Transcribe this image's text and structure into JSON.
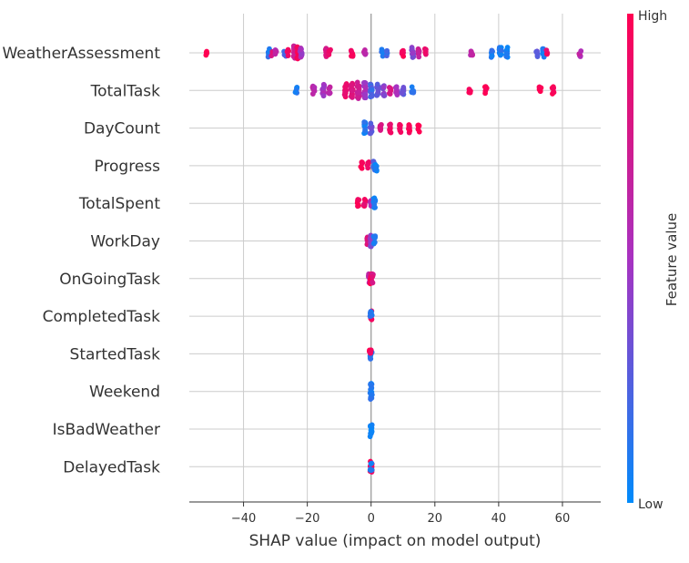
{
  "chart_data": {
    "type": "scatter",
    "subtype": "shap-beeswarm",
    "xlabel": "SHAP value (impact on model output)",
    "xlim": [
      -57,
      72
    ],
    "xticks": [
      -40,
      -20,
      0,
      20,
      40,
      60
    ],
    "grid": true,
    "zero_line": 0,
    "features": [
      {
        "name": "WeatherAssessment",
        "points": [
          {
            "x": -51.5,
            "v": 1.0,
            "n": 4
          },
          {
            "x": -32,
            "v": 0.1,
            "n": 8
          },
          {
            "x": -31,
            "v": 0.8,
            "n": 5
          },
          {
            "x": -30,
            "v": 0.6,
            "n": 5
          },
          {
            "x": -27,
            "v": 0.2,
            "n": 6
          },
          {
            "x": -26,
            "v": 0.9,
            "n": 6
          },
          {
            "x": -24,
            "v": 0.7,
            "n": 14
          },
          {
            "x": -23,
            "v": 0.95,
            "n": 12
          },
          {
            "x": -22,
            "v": 0.5,
            "n": 10
          },
          {
            "x": -14,
            "v": 0.8,
            "n": 8
          },
          {
            "x": -13,
            "v": 0.9,
            "n": 6
          },
          {
            "x": -6,
            "v": 0.95,
            "n": 6
          },
          {
            "x": -2,
            "v": 0.6,
            "n": 6
          },
          {
            "x": 3.5,
            "v": 0.1,
            "n": 6
          },
          {
            "x": 5,
            "v": 0.2,
            "n": 4
          },
          {
            "x": 10,
            "v": 0.95,
            "n": 6
          },
          {
            "x": 13,
            "v": 0.4,
            "n": 10
          },
          {
            "x": 15,
            "v": 0.7,
            "n": 10
          },
          {
            "x": 17,
            "v": 0.9,
            "n": 6
          },
          {
            "x": 31.5,
            "v": 0.6,
            "n": 6
          },
          {
            "x": 38,
            "v": 0.1,
            "n": 8
          },
          {
            "x": 40.5,
            "v": 0.1,
            "n": 10
          },
          {
            "x": 42.5,
            "v": 0.05,
            "n": 10
          },
          {
            "x": 52,
            "v": 0.3,
            "n": 6
          },
          {
            "x": 54,
            "v": 0.1,
            "n": 8
          },
          {
            "x": 55,
            "v": 0.9,
            "n": 4
          },
          {
            "x": 65.5,
            "v": 0.6,
            "n": 6
          }
        ]
      },
      {
        "name": "TotalTask",
        "points": [
          {
            "x": -23.5,
            "v": 0.1,
            "n": 6
          },
          {
            "x": -18,
            "v": 0.6,
            "n": 10
          },
          {
            "x": -15,
            "v": 0.5,
            "n": 12
          },
          {
            "x": -13,
            "v": 0.6,
            "n": 8
          },
          {
            "x": -8,
            "v": 0.9,
            "n": 14
          },
          {
            "x": -6,
            "v": 0.8,
            "n": 16
          },
          {
            "x": -4,
            "v": 0.7,
            "n": 18
          },
          {
            "x": -2,
            "v": 0.5,
            "n": 16
          },
          {
            "x": 0,
            "v": 0.2,
            "n": 14
          },
          {
            "x": 2,
            "v": 0.3,
            "n": 12
          },
          {
            "x": 4,
            "v": 0.4,
            "n": 10
          },
          {
            "x": 6,
            "v": 0.8,
            "n": 6
          },
          {
            "x": 8,
            "v": 0.5,
            "n": 8
          },
          {
            "x": 10,
            "v": 0.3,
            "n": 8
          },
          {
            "x": 13,
            "v": 0.1,
            "n": 8
          },
          {
            "x": 31,
            "v": 1.0,
            "n": 4
          },
          {
            "x": 36,
            "v": 1.0,
            "n": 6
          },
          {
            "x": 53,
            "v": 1.0,
            "n": 6
          },
          {
            "x": 57,
            "v": 1.0,
            "n": 6
          }
        ]
      },
      {
        "name": "DayCount",
        "points": [
          {
            "x": -2,
            "v": 0.1,
            "n": 12
          },
          {
            "x": 0,
            "v": 0.3,
            "n": 10
          },
          {
            "x": 3,
            "v": 0.8,
            "n": 8
          },
          {
            "x": 6,
            "v": 0.9,
            "n": 8
          },
          {
            "x": 9,
            "v": 0.95,
            "n": 8
          },
          {
            "x": 12,
            "v": 0.95,
            "n": 8
          },
          {
            "x": 15,
            "v": 1.0,
            "n": 6
          }
        ]
      },
      {
        "name": "Progress",
        "points": [
          {
            "x": -3,
            "v": 1.0,
            "n": 6
          },
          {
            "x": -1,
            "v": 0.9,
            "n": 6
          },
          {
            "x": 1,
            "v": 0.2,
            "n": 8
          },
          {
            "x": 1.5,
            "v": 0.05,
            "n": 10
          }
        ]
      },
      {
        "name": "TotalSpent",
        "points": [
          {
            "x": -4,
            "v": 0.95,
            "n": 6
          },
          {
            "x": -2,
            "v": 0.9,
            "n": 8
          },
          {
            "x": 0,
            "v": 0.6,
            "n": 8
          },
          {
            "x": 1,
            "v": 0.05,
            "n": 10
          }
        ]
      },
      {
        "name": "WorkDay",
        "points": [
          {
            "x": -1,
            "v": 0.8,
            "n": 8
          },
          {
            "x": 0,
            "v": 0.4,
            "n": 12
          },
          {
            "x": 1,
            "v": 0.1,
            "n": 10
          }
        ]
      },
      {
        "name": "OnGoingTask",
        "points": [
          {
            "x": -0.5,
            "v": 0.6,
            "n": 8
          },
          {
            "x": 0,
            "v": 1.0,
            "n": 10
          },
          {
            "x": 0.5,
            "v": 0.8,
            "n": 8
          }
        ]
      },
      {
        "name": "CompletedTask",
        "points": [
          {
            "x": 0,
            "v": 0.9,
            "n": 10
          },
          {
            "x": 0,
            "v": 0.1,
            "n": 8
          }
        ]
      },
      {
        "name": "StartedTask",
        "points": [
          {
            "x": 0,
            "v": 0.1,
            "n": 10
          },
          {
            "x": -0.3,
            "v": 0.95,
            "n": 6
          }
        ]
      },
      {
        "name": "Weekend",
        "points": [
          {
            "x": 0,
            "v": 0.1,
            "n": 16
          }
        ]
      },
      {
        "name": "IsBadWeather",
        "points": [
          {
            "x": 0,
            "v": 0.05,
            "n": 16
          }
        ]
      },
      {
        "name": "DelayedTask",
        "points": [
          {
            "x": 0,
            "v": 0.95,
            "n": 10
          },
          {
            "x": 0,
            "v": 0.1,
            "n": 6
          }
        ]
      }
    ],
    "colorbar": {
      "label": "Feature value",
      "high_label": "High",
      "low_label": "Low",
      "low_color": "#008bfb",
      "mid_color": "#a832c1",
      "high_color": "#ff0052"
    }
  }
}
